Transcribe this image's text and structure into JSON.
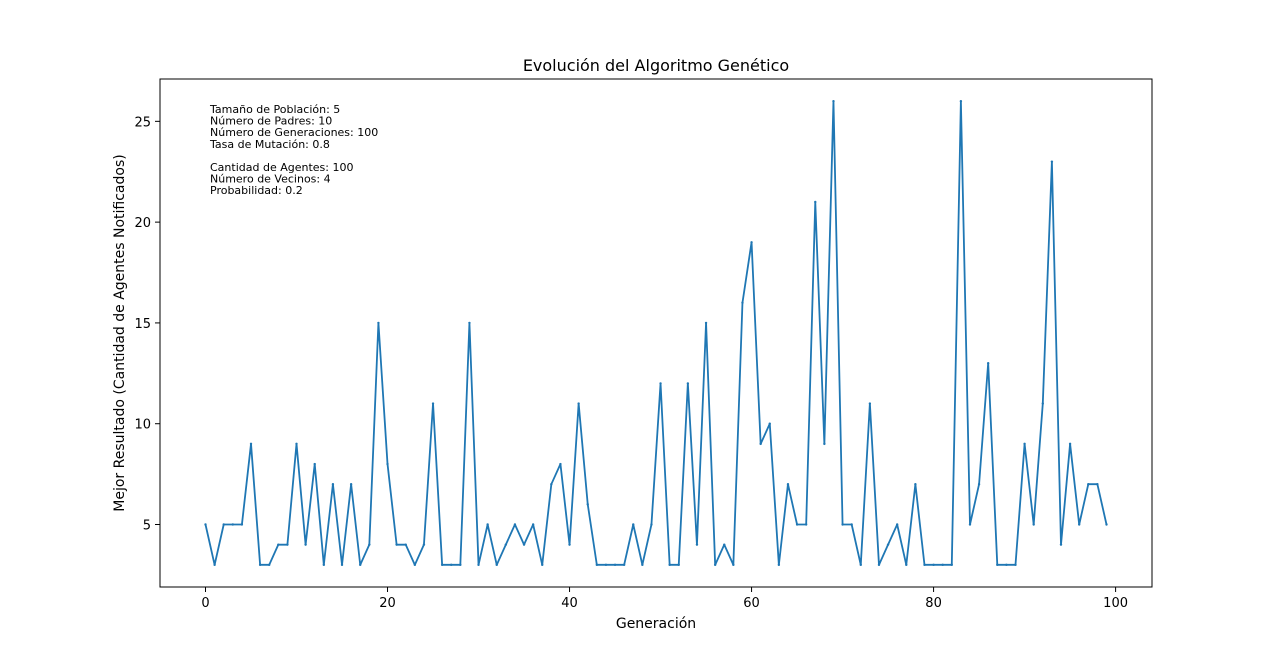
{
  "chart_data": {
    "type": "line",
    "title": "Evolución del Algoritmo Genético",
    "xlabel": "Generación",
    "ylabel": "Mejor Resultado (Cantidad de Agentes Notificados)",
    "xlim": [
      -5,
      104
    ],
    "ylim": [
      1.9,
      27.1
    ],
    "xticks": [
      0,
      20,
      40,
      60,
      80,
      100
    ],
    "yticks": [
      5,
      10,
      15,
      20,
      25
    ],
    "grid": false,
    "color": "#1f77b4",
    "annotation_lines": [
      "Tamaño de Población: 5",
      "Número de Padres: 10",
      "Número de Generaciones: 100",
      "Tasa de Mutación: 0.8",
      "",
      "Cantidad de Agentes: 100",
      "Número de Vecinos: 4",
      "Probabilidad: 0.2"
    ],
    "series": [
      {
        "x": [
          0,
          1,
          2,
          3,
          4,
          5,
          6,
          7,
          8,
          9,
          10,
          11,
          12,
          13,
          14,
          15,
          16,
          17,
          18,
          19,
          20,
          21,
          22,
          23,
          24,
          25,
          26,
          27,
          28,
          29,
          30,
          31,
          32,
          33,
          34,
          35,
          36,
          37,
          38,
          39,
          40,
          41,
          42,
          43,
          44,
          45,
          46,
          47,
          48,
          49,
          50,
          51,
          52,
          53,
          54,
          55,
          56,
          57,
          58,
          59,
          60,
          61,
          62,
          63,
          64,
          65,
          66,
          67,
          68,
          69,
          70,
          71,
          72,
          73,
          74,
          75,
          76,
          77,
          78,
          79,
          80,
          81,
          82,
          83,
          84,
          85,
          86,
          87,
          88,
          89,
          90,
          91,
          92,
          93,
          94,
          95,
          96,
          97,
          98,
          99
        ],
        "values": [
          5,
          3,
          5,
          5,
          5,
          9,
          3,
          3,
          4,
          4,
          9,
          4,
          8,
          3,
          7,
          3,
          7,
          3,
          4,
          15,
          8,
          4,
          4,
          3,
          4,
          11,
          3,
          3,
          3,
          15,
          3,
          5,
          3,
          4,
          5,
          4,
          5,
          3,
          7,
          8,
          4,
          11,
          6,
          3,
          3,
          3,
          3,
          5,
          3,
          5,
          12,
          3,
          3,
          12,
          4,
          15,
          3,
          4,
          3,
          16,
          19,
          9,
          10,
          3,
          7,
          5,
          5,
          21,
          9,
          26,
          5,
          5,
          3,
          11,
          3,
          4,
          5,
          3,
          7,
          3,
          3,
          3,
          3,
          26,
          5,
          7,
          13,
          3,
          3,
          3,
          9,
          5,
          11,
          23,
          4,
          9,
          5,
          7,
          7,
          5
        ]
      }
    ]
  }
}
